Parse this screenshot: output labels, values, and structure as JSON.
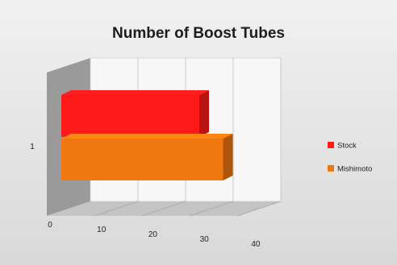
{
  "chart_data": {
    "type": "bar",
    "orientation": "horizontal",
    "style": "3d-clustered",
    "title": "Number of Boost Tubes",
    "categories": [
      "1"
    ],
    "series": [
      {
        "name": "Stock",
        "values": [
          30
        ],
        "color": "#ff1a1a"
      },
      {
        "name": "Mishimoto",
        "values": [
          35
        ],
        "color": "#f07810"
      }
    ],
    "x_ticks": [
      0,
      10,
      20,
      30,
      40
    ],
    "xlim": [
      0,
      40
    ],
    "grid": true,
    "legend": "right"
  }
}
